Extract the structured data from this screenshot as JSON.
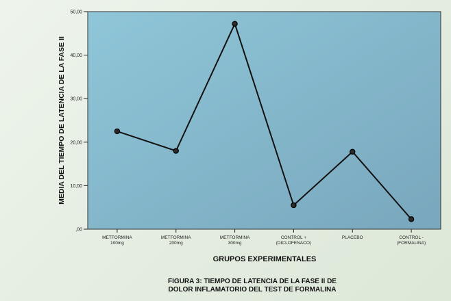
{
  "chart_data": {
    "type": "line",
    "categories": [
      [
        "METFORMINA",
        "100mg"
      ],
      [
        "METFORMINA",
        "200mg"
      ],
      [
        "METFORMINA",
        "300mg"
      ],
      [
        "CONTROL +",
        "(DICLOFENACO)"
      ],
      [
        "PLACEBO"
      ],
      [
        "CONTROL -",
        "(FORMALINA)"
      ]
    ],
    "values": [
      22.5,
      18.0,
      47.2,
      5.5,
      17.8,
      2.3
    ],
    "xlabel": "GRUPOS EXPERIMENTALES",
    "ylabel": "MEDIA DEL TIEMPO DE LATENCIA DE LA FASE II",
    "ylim": [
      0,
      50
    ],
    "yticks": [
      0,
      10,
      20,
      30,
      40,
      50
    ],
    "ytick_labels": [
      ",00",
      "10,00",
      "20,00",
      "30,00",
      "40,00",
      "50,00"
    ],
    "grid": false,
    "colors": {
      "plot_bg_left": "#8fc6d8",
      "plot_bg_right": "#79a7bd",
      "line": "#111111",
      "marker_fill": "#2a2a2a"
    }
  },
  "caption": {
    "lines": [
      "FIGURA 3: TIEMPO DE LATENCIA DE LA FASE II DE",
      "DOLOR INFLAMATORIO DEL TEST DE FORMALINA"
    ]
  }
}
